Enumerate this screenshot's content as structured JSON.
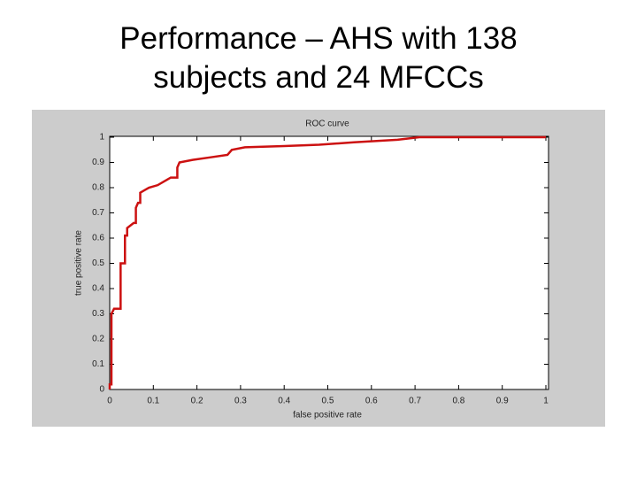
{
  "heading": [
    "Performance – AHS with 138",
    "subjects and 24 MFCCs"
  ],
  "chart_data": {
    "type": "line",
    "title": "ROC curve",
    "xlabel": "false positive rate",
    "ylabel": "true positive rate",
    "xlim": [
      0,
      1
    ],
    "ylim": [
      0,
      1
    ],
    "xticks": [
      0,
      0.1,
      0.2,
      0.3,
      0.4,
      0.5,
      0.6,
      0.7,
      0.8,
      0.9,
      1
    ],
    "yticks": [
      0,
      0.1,
      0.2,
      0.3,
      0.4,
      0.5,
      0.6,
      0.7,
      0.8,
      0.9,
      1
    ],
    "grid": false,
    "series": [
      {
        "name": null,
        "color": "#cc1111",
        "x": [
          0,
          0,
          0.004,
          0.004,
          0.01,
          0.02,
          0.025,
          0.025,
          0.03,
          0.035,
          0.035,
          0.04,
          0.04,
          0.055,
          0.06,
          0.06,
          0.065,
          0.07,
          0.07,
          0.08,
          0.09,
          0.11,
          0.13,
          0.14,
          0.155,
          0.155,
          0.16,
          0.19,
          0.23,
          0.27,
          0.28,
          0.31,
          0.4,
          0.48,
          0.56,
          0.66,
          0.71,
          1
        ],
        "values": [
          0,
          0.02,
          0.02,
          0.3,
          0.32,
          0.32,
          0.32,
          0.5,
          0.5,
          0.5,
          0.61,
          0.61,
          0.64,
          0.66,
          0.66,
          0.72,
          0.74,
          0.74,
          0.78,
          0.79,
          0.8,
          0.81,
          0.83,
          0.84,
          0.84,
          0.88,
          0.9,
          0.91,
          0.92,
          0.93,
          0.95,
          0.96,
          0.965,
          0.97,
          0.98,
          0.99,
          1,
          1
        ]
      }
    ]
  }
}
